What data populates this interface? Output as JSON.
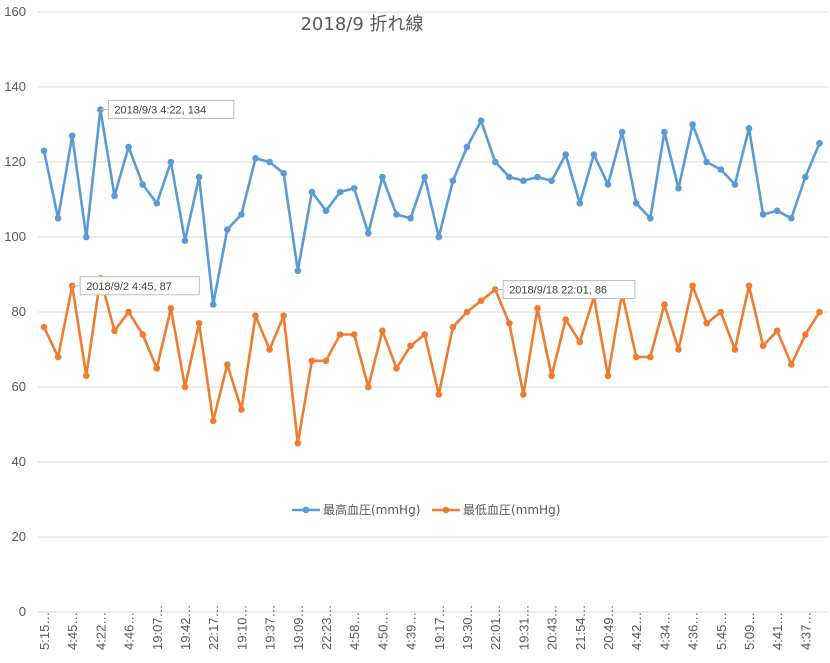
{
  "chart_data": {
    "type": "line",
    "title": "2018/9  折れ線",
    "xlabel": "",
    "ylabel": "",
    "ylim": [
      0,
      160
    ],
    "yticks": [
      0,
      20,
      40,
      60,
      80,
      100,
      120,
      140,
      160
    ],
    "grid": true,
    "legend_position": "bottom-center",
    "categories": [
      "5:15",
      "",
      "4:45",
      "",
      "4:22",
      "",
      "4:46",
      "",
      "19:07",
      "",
      "19:42",
      "",
      "22:17",
      "",
      "19:10",
      "",
      "19:37",
      "",
      "19:09",
      "",
      "22:23",
      "",
      "4:58",
      "",
      "4:50",
      "",
      "4:39",
      "",
      "19:17",
      "",
      "19:30",
      "",
      "22:01",
      "",
      "19:31",
      "",
      "20:43",
      "",
      "21:54",
      "",
      "20:49",
      "",
      "4:42",
      "",
      "4:34",
      "",
      "4:36",
      "",
      "5:45",
      "",
      "5:09",
      "",
      "4:41",
      "",
      "4:37",
      ""
    ],
    "x_tick_labels": [
      "5:15…",
      "4:45…",
      "4:22…",
      "4:46…",
      "19:07…",
      "19:42…",
      "22:17…",
      "19:10…",
      "19:37…",
      "19:09…",
      "22:23…",
      "4:58…",
      "4:50…",
      "4:39…",
      "19:17…",
      "19:30…",
      "22:01…",
      "19:31…",
      "20:43…",
      "21:54…",
      "20:49…",
      "4:42…",
      "4:34…",
      "4:36…",
      "5:45…",
      "5:09…",
      "4:41…",
      "4:37…"
    ],
    "series": [
      {
        "name": "最高血圧(mmHg)",
        "color": "#5B9BD5",
        "values": [
          123,
          105,
          127,
          100,
          134,
          111,
          124,
          114,
          109,
          120,
          99,
          116,
          82,
          102,
          106,
          121,
          120,
          117,
          91,
          112,
          107,
          112,
          113,
          101,
          116,
          106,
          105,
          116,
          100,
          115,
          124,
          131,
          120,
          116,
          115,
          116,
          115,
          122,
          109,
          122,
          114,
          128,
          109,
          105,
          128,
          113,
          130,
          120,
          118,
          114,
          129,
          106,
          107,
          105,
          116,
          125
        ]
      },
      {
        "name": "最低血圧(mmHg)",
        "color": "#ED7D31",
        "values": [
          76,
          68,
          87,
          63,
          89,
          75,
          80,
          74,
          65,
          81,
          60,
          77,
          51,
          66,
          54,
          79,
          70,
          79,
          45,
          67,
          67,
          74,
          74,
          60,
          75,
          65,
          71,
          74,
          58,
          76,
          80,
          83,
          86,
          77,
          58,
          81,
          63,
          78,
          72,
          84,
          63,
          85,
          68,
          68,
          82,
          70,
          87,
          77,
          80,
          70,
          87,
          71,
          75,
          66,
          74,
          80
        ]
      }
    ],
    "annotations": [
      {
        "series": 0,
        "index": 4,
        "text": "2018/9/3 4:22, 134"
      },
      {
        "series": 1,
        "index": 2,
        "text": "2018/9/2 4:45, 87"
      },
      {
        "series": 1,
        "index": 32,
        "text": "2018/9/18 22:01, 86"
      }
    ]
  }
}
